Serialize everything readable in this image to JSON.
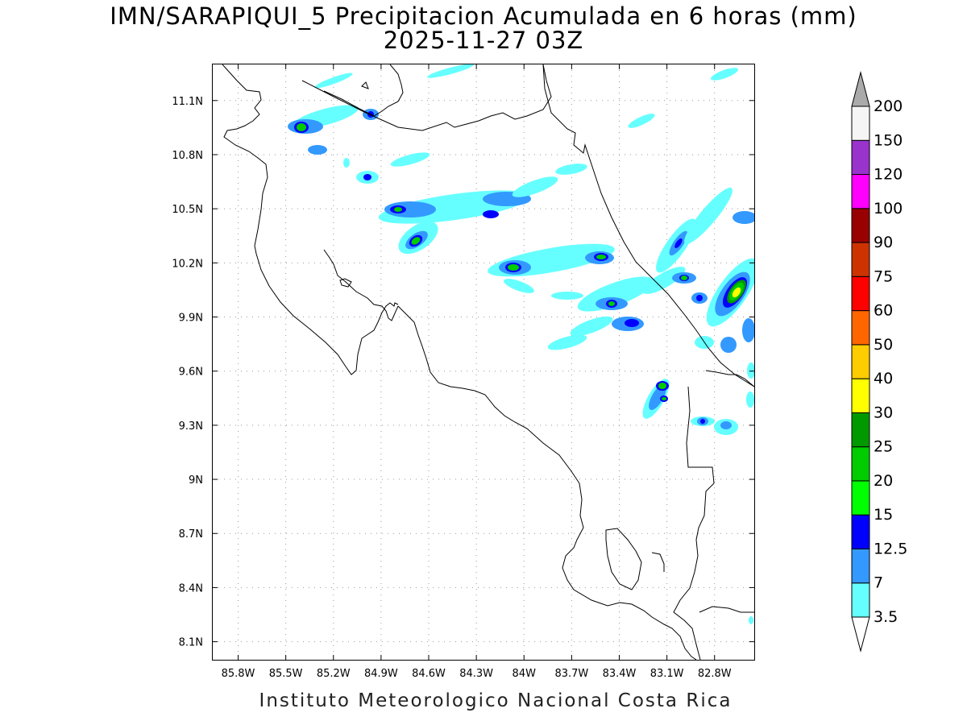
{
  "title": {
    "line1": "IMN/SARAPIQUI_5 Precipitacion Acumulada en 6 horas (mm)",
    "line2": "2025-11-27 03Z"
  },
  "footer": "Instituto Meteorologico Nacional Costa Rica",
  "chart_data": {
    "type": "heatmap",
    "variable": "Precipitacion Acumulada en 6 horas (mm)",
    "x_axis": {
      "ticks": [
        -85.8,
        -85.5,
        -85.2,
        -84.9,
        -84.6,
        -84.3,
        -84.0,
        -83.7,
        -83.4,
        -83.1,
        -82.8
      ],
      "tick_labels": [
        "85.8W",
        "85.5W",
        "85.2W",
        "84.9W",
        "84.6W",
        "84.3W",
        "84W",
        "83.7W",
        "83.4W",
        "83.1W",
        "82.8W"
      ],
      "range": [
        -85.96,
        -82.55
      ]
    },
    "y_axis": {
      "ticks": [
        8.1,
        8.4,
        8.7,
        9.0,
        9.3,
        9.6,
        9.9,
        10.2,
        10.5,
        10.8,
        11.1
      ],
      "tick_labels": [
        "8.1N",
        "8.4N",
        "8.7N",
        "9N",
        "9.3N",
        "9.6N",
        "9.9N",
        "10.2N",
        "10.5N",
        "10.8N",
        "11.1N"
      ],
      "range": [
        8.0,
        11.3
      ]
    },
    "grid": true,
    "colorbar": {
      "levels": [
        "3.5",
        "7",
        "12.5",
        "15",
        "20",
        "25",
        "30",
        "40",
        "50",
        "60",
        "75",
        "90",
        "100",
        "120",
        "150",
        "200"
      ],
      "colors": [
        "#66ffff",
        "#3399ff",
        "#0000ff",
        "#00ff00",
        "#00cc00",
        "#009900",
        "#ffff00",
        "#ffcc00",
        "#ff6600",
        "#ff0000",
        "#cc3300",
        "#990000",
        "#ff00ff",
        "#9933cc",
        "#f5f5f5",
        "#aaaaaa"
      ]
    },
    "precip_cells": [
      {
        "lon": -85.45,
        "lat": 10.97,
        "value": 25
      },
      {
        "lon": -85.35,
        "lat": 10.99,
        "value": 12.5
      },
      {
        "lon": -85.2,
        "lat": 11.0,
        "value": 7
      },
      {
        "lon": -85.05,
        "lat": 11.02,
        "value": 12.5
      },
      {
        "lon": -84.95,
        "lat": 11.05,
        "value": 3.5
      },
      {
        "lon": -85.3,
        "lat": 10.85,
        "value": 7
      },
      {
        "lon": -85.15,
        "lat": 11.18,
        "value": 3.5
      },
      {
        "lon": -84.95,
        "lat": 10.67,
        "value": 12.5
      },
      {
        "lon": -84.85,
        "lat": 10.5,
        "value": 20
      },
      {
        "lon": -84.75,
        "lat": 10.5,
        "value": 12.5
      },
      {
        "lon": -84.6,
        "lat": 10.5,
        "value": 7
      },
      {
        "lon": -84.4,
        "lat": 10.55,
        "value": 7
      },
      {
        "lon": -84.2,
        "lat": 10.5,
        "value": 12.5
      },
      {
        "lon": -84.0,
        "lat": 10.57,
        "value": 7
      },
      {
        "lon": -84.7,
        "lat": 10.3,
        "value": 20
      },
      {
        "lon": -84.0,
        "lat": 10.18,
        "value": 20
      },
      {
        "lon": -83.85,
        "lat": 10.18,
        "value": 7
      },
      {
        "lon": -83.6,
        "lat": 10.22,
        "value": 15
      },
      {
        "lon": -83.4,
        "lat": 9.98,
        "value": 15
      },
      {
        "lon": -83.3,
        "lat": 9.85,
        "value": 12.5
      },
      {
        "lon": -83.05,
        "lat": 10.12,
        "value": 15
      },
      {
        "lon": -83.1,
        "lat": 10.3,
        "value": 12.5
      },
      {
        "lon": -82.7,
        "lat": 10.05,
        "value": 40
      },
      {
        "lon": -82.8,
        "lat": 10.0,
        "value": 20
      },
      {
        "lon": -83.1,
        "lat": 9.52,
        "value": 20
      },
      {
        "lon": -83.1,
        "lat": 9.45,
        "value": 15
      },
      {
        "lon": -82.9,
        "lat": 9.33,
        "value": 12.5
      },
      {
        "lon": -82.75,
        "lat": 9.3,
        "value": 7
      },
      {
        "lon": -82.6,
        "lat": 10.45,
        "value": 12.5
      }
    ]
  }
}
